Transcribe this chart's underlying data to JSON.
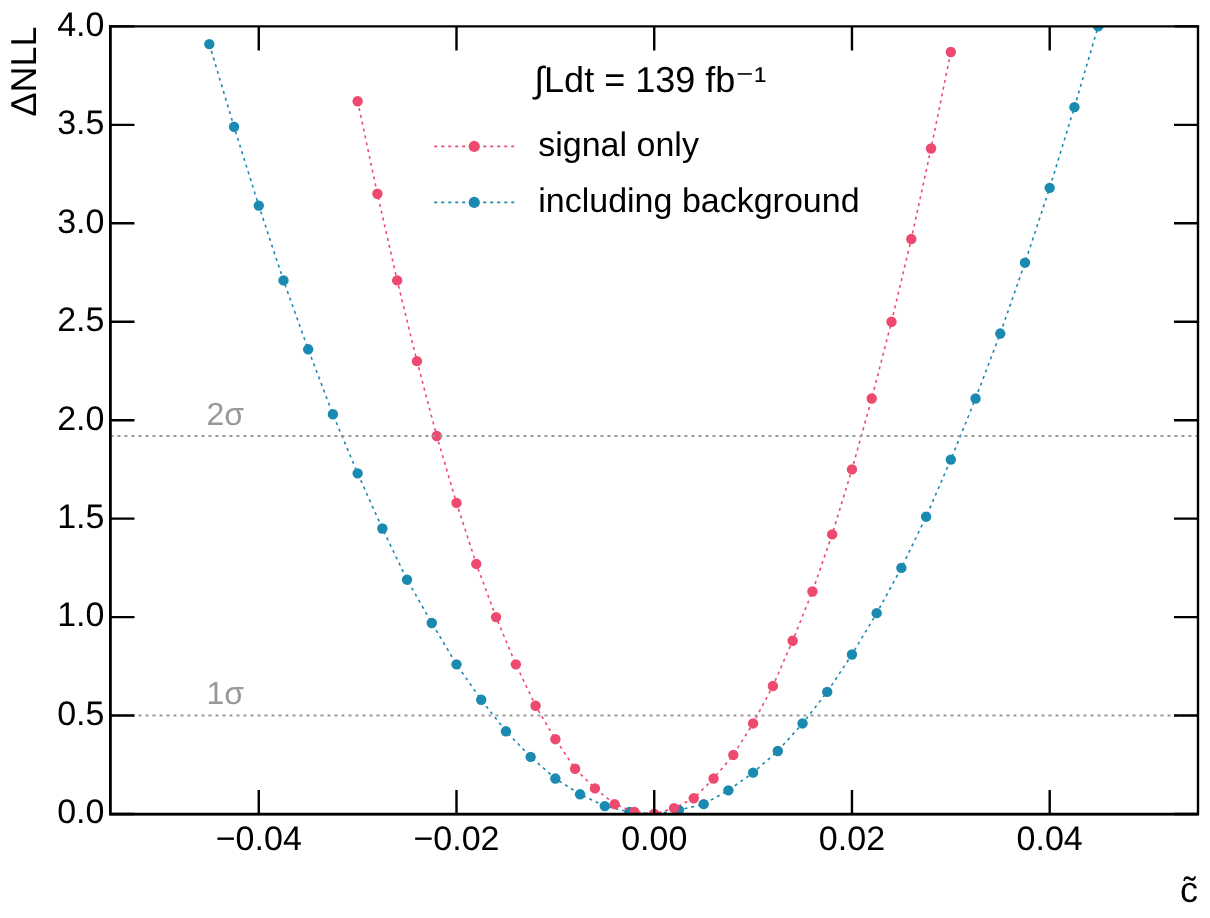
{
  "chart_data": {
    "type": "line",
    "xlabel": "c̃",
    "ylabel": "ΔNLL",
    "annotations": [
      "∫Ldt = 139 fb⁻¹"
    ],
    "xlim": [
      -0.055,
      0.055
    ],
    "xticks": [
      {
        "value": -0.04,
        "label": "−0.04"
      },
      {
        "value": -0.02,
        "label": "−0.02"
      },
      {
        "value": 0,
        "label": "0.00"
      },
      {
        "value": 0.02,
        "label": "0.02"
      },
      {
        "value": 0.04,
        "label": "0.04"
      }
    ],
    "ylim": [
      0,
      4
    ],
    "yticks": [
      {
        "value": 0,
        "label": "0.0"
      },
      {
        "value": 0.5,
        "label": "0.5"
      },
      {
        "value": 1,
        "label": "1.0"
      },
      {
        "value": 1.5,
        "label": "1.5"
      },
      {
        "value": 2,
        "label": "2.0"
      },
      {
        "value": 2.5,
        "label": "2.5"
      },
      {
        "value": 3,
        "label": "3.0"
      },
      {
        "value": 3.5,
        "label": "3.5"
      },
      {
        "value": 4,
        "label": "4.0"
      }
    ],
    "grid": false,
    "legend": "top",
    "marker": "circle",
    "line_style": "dotted",
    "ref_lines": [
      {
        "axis": "y",
        "value": 0.5,
        "label": "1σ",
        "color": "#999999",
        "line_style": "dotted"
      },
      {
        "axis": "y",
        "value": 1.92,
        "label": "2σ",
        "color": "#999999",
        "line_style": "dotted"
      }
    ],
    "series": [
      {
        "name": "signal only",
        "color": "#ee4a70",
        "x": [
          -0.03,
          -0.028,
          -0.026,
          -0.024,
          -0.022,
          -0.02,
          -0.018,
          -0.016,
          -0.014,
          -0.012,
          -0.01,
          -0.008,
          -0.006,
          -0.004,
          -0.002,
          0,
          0.002,
          0.004,
          0.006,
          0.008,
          0.01,
          0.012,
          0.014,
          0.016,
          0.018,
          0.02,
          0.022,
          0.024,
          0.026,
          0.028,
          0.03
        ],
        "values": [
          3.62,
          3.15,
          2.71,
          2.3,
          1.92,
          1.58,
          1.27,
          1.0,
          0.76,
          0.55,
          0.38,
          0.23,
          0.13,
          0.05,
          0.01,
          0.0,
          0.03,
          0.08,
          0.18,
          0.3,
          0.46,
          0.65,
          0.88,
          1.13,
          1.42,
          1.75,
          2.11,
          2.5,
          2.92,
          3.38,
          3.87
        ]
      },
      {
        "name": "including background",
        "color": "#1a8ab0",
        "x": [
          -0.045,
          -0.0425,
          -0.04,
          -0.0375,
          -0.035,
          -0.0325,
          -0.03,
          -0.0275,
          -0.025,
          -0.0225,
          -0.02,
          -0.0175,
          -0.015,
          -0.0125,
          -0.01,
          -0.0075,
          -0.005,
          -0.0025,
          0,
          0.0025,
          0.005,
          0.0075,
          0.01,
          0.0125,
          0.015,
          0.0175,
          0.02,
          0.0225,
          0.025,
          0.0275,
          0.03,
          0.0325,
          0.035,
          0.0375,
          0.04,
          0.0425,
          0.0449
        ],
        "values": [
          3.91,
          3.49,
          3.09,
          2.71,
          2.36,
          2.03,
          1.73,
          1.45,
          1.19,
          0.97,
          0.76,
          0.58,
          0.42,
          0.29,
          0.18,
          0.1,
          0.04,
          0.01,
          0.0,
          0.02,
          0.05,
          0.12,
          0.21,
          0.32,
          0.46,
          0.62,
          0.81,
          1.02,
          1.25,
          1.51,
          1.8,
          2.11,
          2.44,
          2.8,
          3.18,
          3.59,
          4.0
        ]
      }
    ]
  }
}
